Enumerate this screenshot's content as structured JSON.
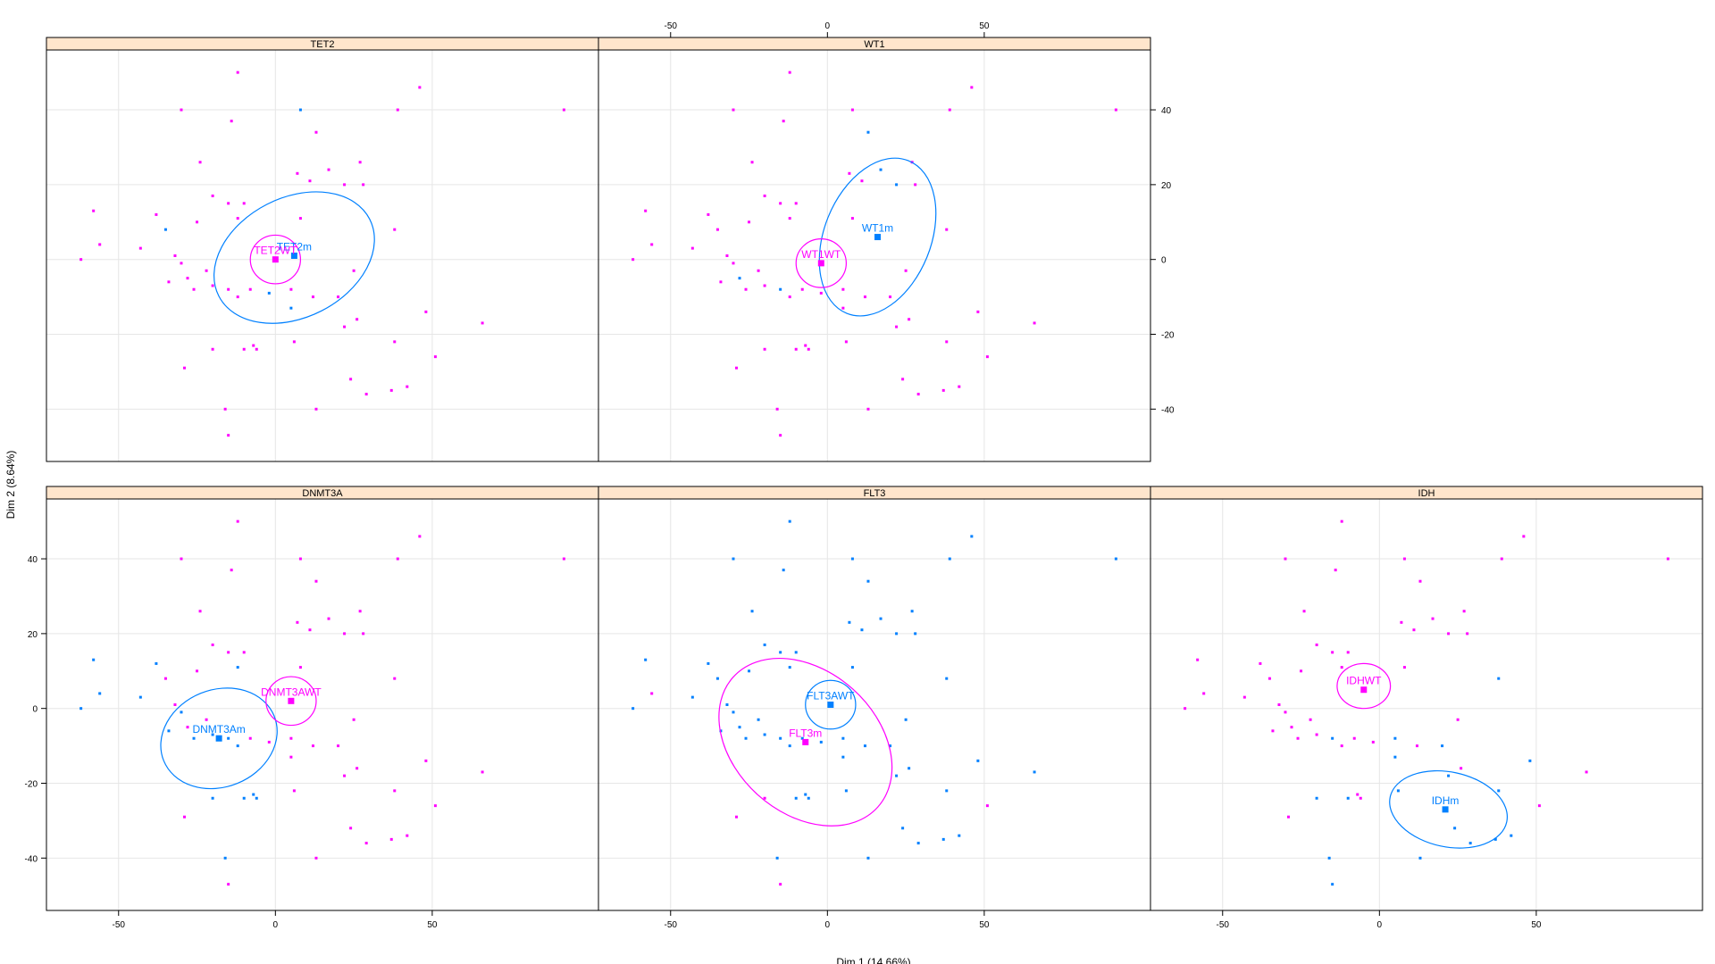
{
  "chart_data": {
    "type": "scatter",
    "xlabel": "Dim 1 (14.66%)",
    "ylabel": "Dim 2 (8.64%)",
    "xlim": [
      -73,
      103
    ],
    "ylim": [
      -54,
      56
    ],
    "x_ticks": [
      -50,
      0,
      50
    ],
    "y_ticks": [
      -40,
      -20,
      0,
      20,
      40
    ],
    "grid": true,
    "colors": {
      "magenta": "#ff00ff",
      "blue": "#0080ff",
      "strip": "#ffe5cc"
    },
    "points": [
      {
        "x": -12,
        "y": 50
      },
      {
        "x": -30,
        "y": 40
      },
      {
        "x": 8,
        "y": 40
      },
      {
        "x": 46,
        "y": 46
      },
      {
        "x": 39,
        "y": 40
      },
      {
        "x": 92,
        "y": 40
      },
      {
        "x": -14,
        "y": 37
      },
      {
        "x": 13,
        "y": 34
      },
      {
        "x": -24,
        "y": 26
      },
      {
        "x": 27,
        "y": 26
      },
      {
        "x": 7,
        "y": 23
      },
      {
        "x": 17,
        "y": 24
      },
      {
        "x": -20,
        "y": 17
      },
      {
        "x": -15,
        "y": 15
      },
      {
        "x": -10,
        "y": 15
      },
      {
        "x": 11,
        "y": 21
      },
      {
        "x": 22,
        "y": 20
      },
      {
        "x": 28,
        "y": 20
      },
      {
        "x": -58,
        "y": 13
      },
      {
        "x": -38,
        "y": 12
      },
      {
        "x": -35,
        "y": 8
      },
      {
        "x": -25,
        "y": 10
      },
      {
        "x": -12,
        "y": 11
      },
      {
        "x": 8,
        "y": 11
      },
      {
        "x": -56,
        "y": 4
      },
      {
        "x": -43,
        "y": 3
      },
      {
        "x": -32,
        "y": 1
      },
      {
        "x": -30,
        "y": -1
      },
      {
        "x": -62,
        "y": 0
      },
      {
        "x": -28,
        "y": -5
      },
      {
        "x": -22,
        "y": -3
      },
      {
        "x": -34,
        "y": -6
      },
      {
        "x": -26,
        "y": -8
      },
      {
        "x": -20,
        "y": -7
      },
      {
        "x": -15,
        "y": -8
      },
      {
        "x": -12,
        "y": -10
      },
      {
        "x": -8,
        "y": -8
      },
      {
        "x": -2,
        "y": -9
      },
      {
        "x": 5,
        "y": -8
      },
      {
        "x": 12,
        "y": -10
      },
      {
        "x": 20,
        "y": -10
      },
      {
        "x": 25,
        "y": -3
      },
      {
        "x": 38,
        "y": 8
      },
      {
        "x": 48,
        "y": -14
      },
      {
        "x": 66,
        "y": -17
      },
      {
        "x": 5,
        "y": -13
      },
      {
        "x": 22,
        "y": -18
      },
      {
        "x": 26,
        "y": -16
      },
      {
        "x": -20,
        "y": -24
      },
      {
        "x": -10,
        "y": -24
      },
      {
        "x": -7,
        "y": -23
      },
      {
        "x": -6,
        "y": -24
      },
      {
        "x": 6,
        "y": -22
      },
      {
        "x": 38,
        "y": -22
      },
      {
        "x": -29,
        "y": -29
      },
      {
        "x": 51,
        "y": -26
      },
      {
        "x": 24,
        "y": -32
      },
      {
        "x": 29,
        "y": -36
      },
      {
        "x": 37,
        "y": -35
      },
      {
        "x": 42,
        "y": -34
      },
      {
        "x": -16,
        "y": -40
      },
      {
        "x": 13,
        "y": -40
      },
      {
        "x": -15,
        "y": -47
      }
    ],
    "panels": [
      {
        "title": "TET2",
        "blue_points": [
          2,
          20,
          37,
          45
        ],
        "centroids": [
          {
            "label": "TET2m",
            "x": 6,
            "y": 1,
            "color": "blue"
          },
          {
            "label": "TET2WT",
            "x": 0,
            "y": 0,
            "color": "magenta"
          }
        ],
        "ellipses": [
          {
            "color": "blue",
            "cx": 6,
            "cy": 0.5,
            "rx": 27,
            "ry": 16,
            "angle": 27
          },
          {
            "color": "magenta",
            "cx": 0,
            "cy": 0,
            "rx": 8,
            "ry": 6.5,
            "angle": 0
          }
        ]
      },
      {
        "title": "WT1",
        "blue_points": [
          7,
          11,
          16,
          29,
          34
        ],
        "centroids": [
          {
            "label": "WT1m",
            "x": 16,
            "y": 6,
            "color": "blue"
          },
          {
            "label": "WT1WT",
            "x": -2,
            "y": -1,
            "color": "magenta"
          }
        ],
        "ellipses": [
          {
            "color": "blue",
            "cx": 16,
            "cy": 6,
            "rx": 17,
            "ry": 22,
            "angle": -22
          },
          {
            "color": "magenta",
            "cx": -2,
            "cy": -1,
            "rx": 8,
            "ry": 6.5,
            "angle": 0
          }
        ]
      },
      {
        "title": "DNMT3A",
        "blue_points": [
          18,
          19,
          22,
          24,
          25,
          27,
          28,
          31,
          32,
          33,
          34,
          35,
          48,
          49,
          50,
          51,
          60
        ],
        "centroids": [
          {
            "label": "DNMT3Am",
            "x": -18,
            "y": -8,
            "color": "blue"
          },
          {
            "label": "DNMT3AWT",
            "x": 5,
            "y": 2,
            "color": "magenta"
          }
        ],
        "ellipses": [
          {
            "color": "blue",
            "cx": -18,
            "cy": -8,
            "rx": 19,
            "ry": 13,
            "angle": 22
          },
          {
            "color": "magenta",
            "cx": 5,
            "cy": 2,
            "rx": 8,
            "ry": 6.5,
            "angle": 0
          }
        ]
      },
      {
        "title": "FLT3",
        "blue_points": [
          0,
          1,
          2,
          3,
          4,
          5,
          6,
          7,
          8,
          9,
          10,
          11,
          12,
          13,
          14,
          15,
          16,
          17,
          18,
          19,
          20,
          21,
          22,
          23,
          25,
          26,
          27,
          28,
          29,
          30,
          31,
          32,
          33,
          34,
          35,
          36,
          37,
          38,
          39,
          40,
          41,
          42,
          43,
          44,
          45,
          46,
          47,
          49,
          50,
          51,
          52,
          53,
          56,
          57,
          58,
          59,
          60,
          61
        ],
        "centroids": [
          {
            "label": "FLT3AWT",
            "x": 1,
            "y": 1,
            "color": "blue"
          },
          {
            "label": "FLT3m",
            "x": -7,
            "y": -9,
            "color": "magenta"
          }
        ],
        "ellipses": [
          {
            "color": "blue",
            "cx": 1,
            "cy": 1,
            "rx": 8,
            "ry": 6.5,
            "angle": 0
          },
          {
            "color": "magenta",
            "cx": -7,
            "cy": -9,
            "rx": 31,
            "ry": 19,
            "angle": -42
          }
        ]
      },
      {
        "title": "IDH",
        "blue_points": [
          42,
          43,
          45,
          46,
          48,
          49,
          52,
          53,
          56,
          57,
          58,
          59,
          60,
          61,
          62,
          34,
          38,
          40
        ],
        "centroids": [
          {
            "label": "IDHWT",
            "x": -5,
            "y": 5,
            "color": "magenta"
          },
          {
            "label": "IDHm",
            "x": 21,
            "y": -27,
            "color": "blue"
          }
        ],
        "ellipses": [
          {
            "color": "magenta",
            "cx": -5,
            "cy": 6,
            "rx": 8.5,
            "ry": 6,
            "angle": 0
          },
          {
            "color": "blue",
            "cx": 22,
            "cy": -27,
            "rx": 19,
            "ry": 10,
            "angle": -12
          }
        ]
      }
    ]
  }
}
